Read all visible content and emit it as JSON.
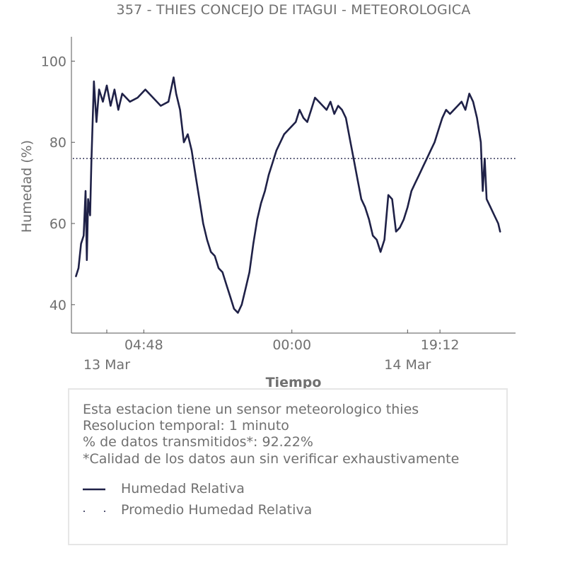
{
  "title": "357 - THIES CONCEJO DE ITAGUI - METEOROLOGICA",
  "chart_data": {
    "type": "line",
    "title": "357 - THIES CONCEJO DE ITAGUI - METEOROLOGICA",
    "xlabel": "Tiempo",
    "ylabel": "Humedad (%)",
    "ylim": [
      33,
      106
    ],
    "yticks": [
      40,
      60,
      80,
      100
    ],
    "xlim": [
      "2017-03-12 19:25",
      "2017-03-15 05:00"
    ],
    "xticks_minor": [
      {
        "x": "2017-03-13 04:48",
        "label": "04:48"
      },
      {
        "x": "2017-03-14 00:00",
        "label": "00:00"
      },
      {
        "x": "2017-03-14 19:12",
        "label": "19:12"
      }
    ],
    "xticks_major": [
      {
        "x": "2017-03-13 00:00",
        "label": "13 Mar"
      },
      {
        "x": "2017-03-14 15:00",
        "label": "14 Mar"
      }
    ],
    "grid": false,
    "series": [
      {
        "name": "Humedad Relativa",
        "color": "#1f2147",
        "style": "solid",
        "points": [
          [
            "2017-03-12 20:00",
            47
          ],
          [
            "2017-03-12 20:20",
            49
          ],
          [
            "2017-03-12 20:40",
            55
          ],
          [
            "2017-03-12 21:00",
            57
          ],
          [
            "2017-03-12 21:15",
            68
          ],
          [
            "2017-03-12 21:25",
            51
          ],
          [
            "2017-03-12 21:35",
            66
          ],
          [
            "2017-03-12 21:50",
            62
          ],
          [
            "2017-03-12 22:00",
            75
          ],
          [
            "2017-03-12 22:20",
            95
          ],
          [
            "2017-03-12 22:40",
            85
          ],
          [
            "2017-03-12 23:00",
            93
          ],
          [
            "2017-03-12 23:30",
            90
          ],
          [
            "2017-03-13 00:00",
            94
          ],
          [
            "2017-03-13 00:30",
            89
          ],
          [
            "2017-03-13 01:00",
            93
          ],
          [
            "2017-03-13 01:30",
            88
          ],
          [
            "2017-03-13 02:00",
            92
          ],
          [
            "2017-03-13 03:00",
            90
          ],
          [
            "2017-03-13 04:00",
            91
          ],
          [
            "2017-03-13 05:00",
            93
          ],
          [
            "2017-03-13 06:00",
            91
          ],
          [
            "2017-03-13 07:00",
            89
          ],
          [
            "2017-03-13 08:00",
            90
          ],
          [
            "2017-03-13 08:40",
            96
          ],
          [
            "2017-03-13 09:00",
            92
          ],
          [
            "2017-03-13 09:30",
            88
          ],
          [
            "2017-03-13 10:00",
            80
          ],
          [
            "2017-03-13 10:30",
            82
          ],
          [
            "2017-03-13 11:00",
            78
          ],
          [
            "2017-03-13 11:30",
            72
          ],
          [
            "2017-03-13 12:00",
            66
          ],
          [
            "2017-03-13 12:30",
            60
          ],
          [
            "2017-03-13 13:00",
            56
          ],
          [
            "2017-03-13 13:30",
            53
          ],
          [
            "2017-03-13 14:00",
            52
          ],
          [
            "2017-03-13 14:30",
            49
          ],
          [
            "2017-03-13 15:00",
            48
          ],
          [
            "2017-03-13 15:30",
            45
          ],
          [
            "2017-03-13 16:00",
            42
          ],
          [
            "2017-03-13 16:30",
            39
          ],
          [
            "2017-03-13 17:00",
            38
          ],
          [
            "2017-03-13 17:30",
            40
          ],
          [
            "2017-03-13 18:00",
            44
          ],
          [
            "2017-03-13 18:30",
            48
          ],
          [
            "2017-03-13 19:00",
            55
          ],
          [
            "2017-03-13 19:30",
            61
          ],
          [
            "2017-03-13 20:00",
            65
          ],
          [
            "2017-03-13 20:30",
            68
          ],
          [
            "2017-03-13 21:00",
            72
          ],
          [
            "2017-03-13 21:30",
            75
          ],
          [
            "2017-03-13 22:00",
            78
          ],
          [
            "2017-03-13 22:30",
            80
          ],
          [
            "2017-03-13 23:00",
            82
          ],
          [
            "2017-03-13 23:30",
            83
          ],
          [
            "2017-03-14 00:00",
            84
          ],
          [
            "2017-03-14 00:30",
            85
          ],
          [
            "2017-03-14 01:00",
            88
          ],
          [
            "2017-03-14 01:30",
            86
          ],
          [
            "2017-03-14 02:00",
            85
          ],
          [
            "2017-03-14 02:30",
            88
          ],
          [
            "2017-03-14 03:00",
            91
          ],
          [
            "2017-03-14 03:30",
            90
          ],
          [
            "2017-03-14 04:00",
            89
          ],
          [
            "2017-03-14 04:30",
            88
          ],
          [
            "2017-03-14 05:00",
            90
          ],
          [
            "2017-03-14 05:30",
            87
          ],
          [
            "2017-03-14 06:00",
            89
          ],
          [
            "2017-03-14 06:30",
            88
          ],
          [
            "2017-03-14 07:00",
            86
          ],
          [
            "2017-03-14 07:30",
            81
          ],
          [
            "2017-03-14 08:00",
            76
          ],
          [
            "2017-03-14 08:30",
            71
          ],
          [
            "2017-03-14 09:00",
            66
          ],
          [
            "2017-03-14 09:30",
            64
          ],
          [
            "2017-03-14 10:00",
            61
          ],
          [
            "2017-03-14 10:30",
            57
          ],
          [
            "2017-03-14 11:00",
            56
          ],
          [
            "2017-03-14 11:30",
            53
          ],
          [
            "2017-03-14 12:00",
            56
          ],
          [
            "2017-03-14 12:30",
            67
          ],
          [
            "2017-03-14 13:00",
            66
          ],
          [
            "2017-03-14 13:30",
            58
          ],
          [
            "2017-03-14 14:00",
            59
          ],
          [
            "2017-03-14 14:30",
            61
          ],
          [
            "2017-03-14 15:00",
            64
          ],
          [
            "2017-03-14 15:30",
            68
          ],
          [
            "2017-03-14 16:00",
            70
          ],
          [
            "2017-03-14 16:30",
            72
          ],
          [
            "2017-03-14 17:00",
            74
          ],
          [
            "2017-03-14 17:30",
            76
          ],
          [
            "2017-03-14 18:00",
            78
          ],
          [
            "2017-03-14 18:30",
            80
          ],
          [
            "2017-03-14 19:00",
            83
          ],
          [
            "2017-03-14 19:30",
            86
          ],
          [
            "2017-03-14 20:00",
            88
          ],
          [
            "2017-03-14 20:30",
            87
          ],
          [
            "2017-03-14 21:00",
            88
          ],
          [
            "2017-03-14 21:30",
            89
          ],
          [
            "2017-03-14 22:00",
            90
          ],
          [
            "2017-03-14 22:30",
            88
          ],
          [
            "2017-03-14 23:00",
            92
          ],
          [
            "2017-03-14 23:30",
            90
          ],
          [
            "2017-03-15 00:00",
            86
          ],
          [
            "2017-03-15 00:30",
            80
          ],
          [
            "2017-03-15 00:45",
            68
          ],
          [
            "2017-03-15 01:00",
            76
          ],
          [
            "2017-03-15 01:15",
            66
          ],
          [
            "2017-03-15 01:45",
            64
          ],
          [
            "2017-03-15 02:15",
            62
          ],
          [
            "2017-03-15 02:45",
            60
          ],
          [
            "2017-03-15 03:00",
            58
          ]
        ]
      },
      {
        "name": "Promedio Humedad Relativa",
        "color": "#1f2147",
        "style": "dotted",
        "value": 76
      }
    ]
  },
  "info": {
    "lines": [
      "Esta estacion tiene un sensor meteorologico thies",
      "Resolucion temporal: 1 minuto",
      "% de datos transmitidos*: 92.22%",
      "*Calidad de los datos aun sin verificar exhaustivamente"
    ],
    "legend": [
      "Humedad Relativa",
      "Promedio Humedad Relativa"
    ]
  }
}
